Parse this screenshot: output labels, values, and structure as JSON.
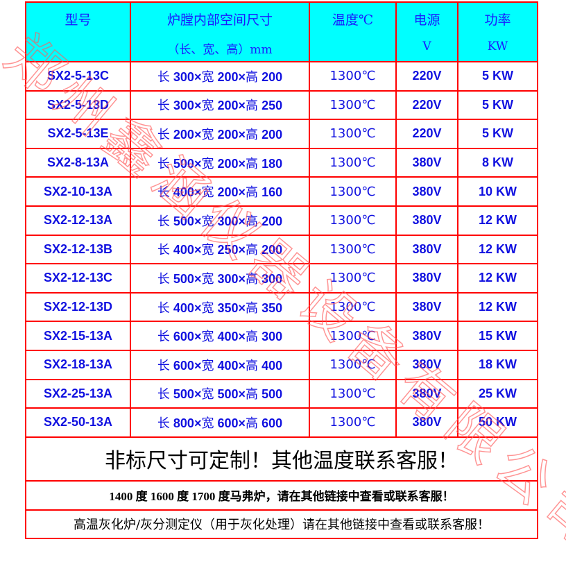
{
  "header": {
    "model": "型号",
    "size_line1": "炉膛内部空间尺寸",
    "size_line2": "（长、宽、高）mm",
    "temp": "温度℃",
    "power_line1": "电源",
    "power_line2": "V",
    "kw_line1": "功率",
    "kw_line2": "KW"
  },
  "rows": [
    {
      "model": "SX2-5-13C",
      "l": "300",
      "w": "200",
      "h": "200",
      "temp": "1300℃",
      "volt": "220V",
      "kw": "5 KW"
    },
    {
      "model": "SX2-5-13D",
      "l": "300",
      "w": "200",
      "h": "250",
      "temp": "1300℃",
      "volt": "220V",
      "kw": "5 KW"
    },
    {
      "model": "SX2-5-13E",
      "l": "200",
      "w": "200",
      "h": "200",
      "temp": "1300℃",
      "volt": "220V",
      "kw": "5 KW"
    },
    {
      "model": "SX2-8-13A",
      "l": "500",
      "w": "200",
      "h": "180",
      "temp": "1300℃",
      "volt": "380V",
      "kw": "8 KW"
    },
    {
      "model": "SX2-10-13A",
      "l": "400",
      "w": "200",
      "h": "160",
      "temp": "1300℃",
      "volt": "380V",
      "kw": "10 KW"
    },
    {
      "model": "SX2-12-13A",
      "l": "500",
      "w": "300",
      "h": "200",
      "temp": "1300℃",
      "volt": "380V",
      "kw": "12 KW"
    },
    {
      "model": "SX2-12-13B",
      "l": "400",
      "w": "250",
      "h": "200",
      "temp": "1300℃",
      "volt": "380V",
      "kw": "12 KW"
    },
    {
      "model": "SX2-12-13C",
      "l": "500",
      "w": "300",
      "h": "300",
      "temp": "1300℃",
      "volt": "380V",
      "kw": "12 KW"
    },
    {
      "model": "SX2-12-13D",
      "l": "400",
      "w": "350",
      "h": "350",
      "temp": "1300℃",
      "volt": "380V",
      "kw": "12 KW"
    },
    {
      "model": "SX2-15-13A",
      "l": "600",
      "w": "400",
      "h": "300",
      "temp": "1300℃",
      "volt": "380V",
      "kw": "15 KW"
    },
    {
      "model": "SX2-18-13A",
      "l": "600",
      "w": "400",
      "h": "400",
      "temp": "1300℃",
      "volt": "380V",
      "kw": "18 KW"
    },
    {
      "model": "SX2-25-13A",
      "l": "500",
      "w": "500",
      "h": "500",
      "temp": "1300℃",
      "volt": "380V",
      "kw": "25 KW"
    },
    {
      "model": "SX2-50-13A",
      "l": "800",
      "w": "600",
      "h": "600",
      "temp": "1300℃",
      "volt": "380V",
      "kw": "50 KW"
    }
  ],
  "dim_labels": {
    "l": "长",
    "w": "宽",
    "h": "高",
    "x": "×"
  },
  "notes": {
    "custom": "非标尺寸可定制！其他温度联系客服！",
    "other_temps": "1400 度 1600 度 1700 度马弗炉，请在其他链接中查看或联系客服！",
    "ashing": "高温灰化炉/灰分测定仪（用于灰化处理）请在其他链接中查看或联系客服！"
  },
  "watermark": "郑州鑫涵仪器设备有限公司",
  "colors": {
    "border": "#ff0000",
    "header_bg": "#00ffff",
    "text_blue": "#1010e0"
  }
}
